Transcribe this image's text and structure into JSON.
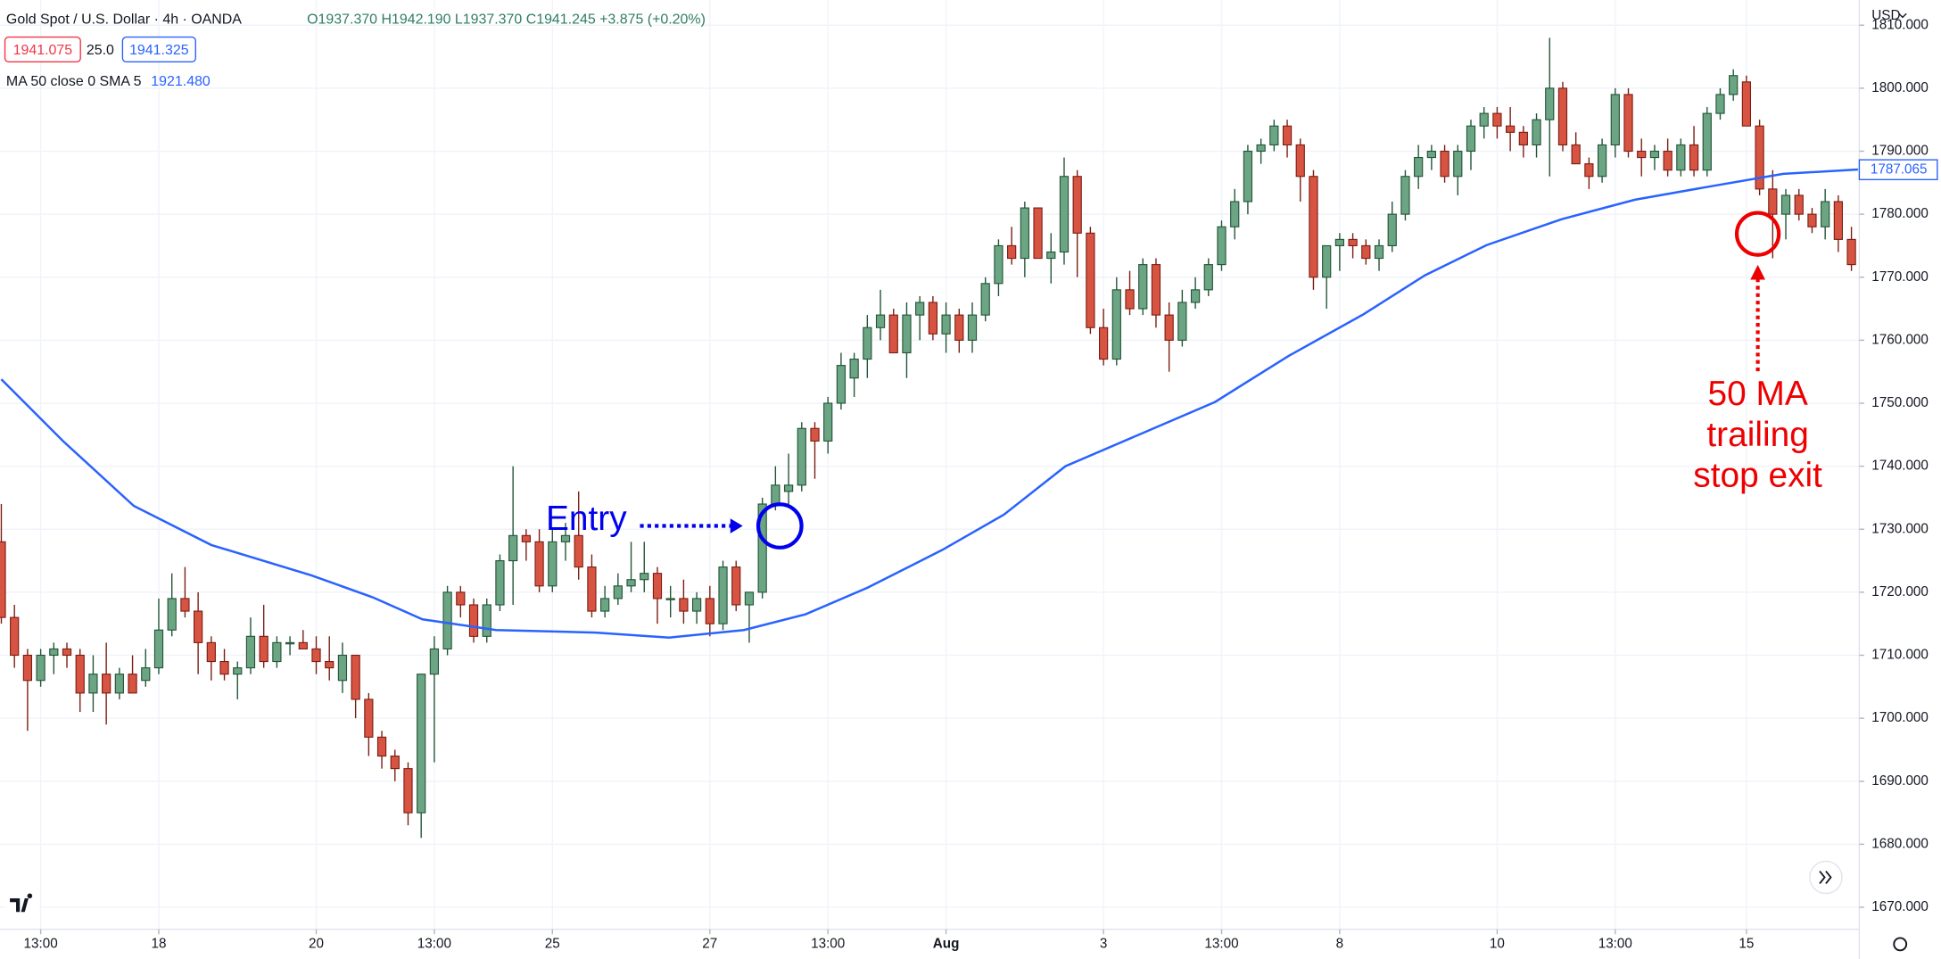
{
  "chart_data": {
    "type": "candlestick",
    "title": "Gold Spot / U.S. Dollar · 4h · OANDA",
    "ohlc_text": "O1937.370 H1942.190 L1937.370 C1941.245 +3.875 (+0.20%)",
    "bid": "1941.075",
    "spread": "25.0",
    "ask": "1941.325",
    "indicator": "MA 50 close 0 SMA 5",
    "indicator_value": "1921.480",
    "currency": "USD",
    "last_price": {
      "value": 1787.065,
      "label": "1787.065"
    },
    "annotations": {
      "entry": "Entry",
      "exit": [
        "50 MA",
        "trailing",
        "stop exit"
      ]
    },
    "colors": {
      "up": "#6ba583",
      "down": "#d75442",
      "ma": "#2962ff"
    },
    "grid": true,
    "ylim": [
      1666.5,
      1814
    ],
    "yticks": [
      {
        "value": 1670,
        "label": "1670.000"
      },
      {
        "value": 1680,
        "label": "1680.000"
      },
      {
        "value": 1690,
        "label": "1690.000"
      },
      {
        "value": 1700,
        "label": "1700.000"
      },
      {
        "value": 1710,
        "label": "1710.000"
      },
      {
        "value": 1720,
        "label": "1720.000"
      },
      {
        "value": 1730,
        "label": "1730.000"
      },
      {
        "value": 1740,
        "label": "1740.000"
      },
      {
        "value": 1750,
        "label": "1750.000"
      },
      {
        "value": 1760,
        "label": "1760.000"
      },
      {
        "value": 1770,
        "label": "1770.000"
      },
      {
        "value": 1780,
        "label": "1780.000"
      },
      {
        "value": 1790,
        "label": "1790.000"
      },
      {
        "value": 1800,
        "label": "1800.000"
      },
      {
        "value": 1810,
        "label": "1810.000"
      }
    ],
    "xlim": [
      -0.1,
      141.6
    ],
    "xticks": [
      {
        "value": 3,
        "label": "13:00"
      },
      {
        "value": 12,
        "label": "18"
      },
      {
        "value": 24,
        "label": "20"
      },
      {
        "value": 33,
        "label": "13:00"
      },
      {
        "value": 42,
        "label": "25"
      },
      {
        "value": 54,
        "label": "27"
      },
      {
        "value": 63,
        "label": "13:00"
      },
      {
        "value": 72,
        "label": "Aug"
      },
      {
        "value": 84,
        "label": "3"
      },
      {
        "value": 93,
        "label": "13:00"
      },
      {
        "value": 102,
        "label": "8"
      },
      {
        "value": 114,
        "label": "10"
      },
      {
        "value": 123,
        "label": "13:00"
      },
      {
        "value": 133,
        "label": "15"
      }
    ],
    "ohlc": [
      [
        1728,
        1734,
        1715,
        1716
      ],
      [
        1716,
        1718,
        1708,
        1710
      ],
      [
        1710,
        1711,
        1698,
        1706
      ],
      [
        1706,
        1711,
        1705,
        1710
      ],
      [
        1710,
        1712,
        1707,
        1711
      ],
      [
        1711,
        1712,
        1708,
        1710
      ],
      [
        1710,
        1711,
        1701,
        1704
      ],
      [
        1704,
        1710,
        1701,
        1707
      ],
      [
        1707,
        1712,
        1699,
        1704
      ],
      [
        1704,
        1708,
        1703,
        1707
      ],
      [
        1707,
        1710,
        1704,
        1704
      ],
      [
        1706,
        1711,
        1705,
        1708
      ],
      [
        1708,
        1719,
        1707,
        1714
      ],
      [
        1714,
        1723,
        1713,
        1719
      ],
      [
        1719,
        1724,
        1716,
        1717
      ],
      [
        1717,
        1720,
        1707,
        1712
      ],
      [
        1712,
        1713,
        1706,
        1709
      ],
      [
        1709,
        1711,
        1706,
        1707
      ],
      [
        1707,
        1709,
        1703,
        1708
      ],
      [
        1708,
        1716,
        1707,
        1713
      ],
      [
        1713,
        1718,
        1708,
        1709
      ],
      [
        1709,
        1713,
        1708,
        1712
      ],
      [
        1712,
        1713,
        1710,
        1712
      ],
      [
        1712,
        1714,
        1711,
        1711
      ],
      [
        1711,
        1713,
        1707,
        1709
      ],
      [
        1709,
        1713,
        1706,
        1708
      ],
      [
        1706,
        1712,
        1704,
        1710
      ],
      [
        1710,
        1710,
        1700,
        1703
      ],
      [
        1703,
        1704,
        1694,
        1697
      ],
      [
        1697,
        1698,
        1692,
        1694
      ],
      [
        1694,
        1695,
        1690,
        1692
      ],
      [
        1692,
        1693,
        1683,
        1685
      ],
      [
        1685,
        1707,
        1681,
        1707
      ],
      [
        1707,
        1713,
        1693,
        1711
      ],
      [
        1711,
        1721,
        1710,
        1720
      ],
      [
        1720,
        1721,
        1716,
        1718
      ],
      [
        1718,
        1719,
        1712,
        1713
      ],
      [
        1713,
        1719,
        1712,
        1718
      ],
      [
        1718,
        1726,
        1717,
        1725
      ],
      [
        1725,
        1740,
        1718,
        1729
      ],
      [
        1729,
        1730,
        1725,
        1728
      ],
      [
        1728,
        1730,
        1720,
        1721
      ],
      [
        1721,
        1730,
        1720,
        1728
      ],
      [
        1728,
        1731,
        1725,
        1729
      ],
      [
        1729,
        1736,
        1722,
        1724
      ],
      [
        1724,
        1726,
        1716,
        1717
      ],
      [
        1717,
        1721,
        1716,
        1719
      ],
      [
        1719,
        1723,
        1718,
        1721
      ],
      [
        1721,
        1728,
        1720,
        1722
      ],
      [
        1722,
        1728,
        1720,
        1723
      ],
      [
        1723,
        1724,
        1715,
        1719
      ],
      [
        1719,
        1721,
        1716,
        1719
      ],
      [
        1719,
        1722,
        1715,
        1717
      ],
      [
        1717,
        1720,
        1715,
        1719
      ],
      [
        1719,
        1721,
        1713,
        1715
      ],
      [
        1715,
        1725,
        1714,
        1724
      ],
      [
        1724,
        1725,
        1717,
        1718
      ],
      [
        1718,
        1720,
        1712,
        1720
      ],
      [
        1720,
        1735,
        1719,
        1734
      ],
      [
        1734,
        1740,
        1733,
        1737
      ],
      [
        1736,
        1742,
        1734,
        1737
      ],
      [
        1737,
        1747,
        1736,
        1746
      ],
      [
        1746,
        1747,
        1738,
        1744
      ],
      [
        1744,
        1751,
        1742,
        1750
      ],
      [
        1750,
        1758,
        1749,
        1756
      ],
      [
        1754,
        1758,
        1751,
        1757
      ],
      [
        1757,
        1764,
        1754,
        1762
      ],
      [
        1762,
        1768,
        1760,
        1764
      ],
      [
        1764,
        1765,
        1758,
        1758
      ],
      [
        1758,
        1766,
        1754,
        1764
      ],
      [
        1764,
        1767,
        1760,
        1766
      ],
      [
        1766,
        1767,
        1760,
        1761
      ],
      [
        1761,
        1766,
        1758,
        1764
      ],
      [
        1764,
        1765,
        1758,
        1760
      ],
      [
        1760,
        1766,
        1758,
        1764
      ],
      [
        1764,
        1770,
        1763,
        1769
      ],
      [
        1769,
        1776,
        1767,
        1775
      ],
      [
        1775,
        1778,
        1772,
        1773
      ],
      [
        1773,
        1782,
        1770,
        1781
      ],
      [
        1781,
        1781,
        1773,
        1773
      ],
      [
        1773,
        1777,
        1769,
        1774
      ],
      [
        1774,
        1789,
        1772,
        1786
      ],
      [
        1786,
        1787,
        1770,
        1777
      ],
      [
        1777,
        1778,
        1761,
        1762
      ],
      [
        1762,
        1765,
        1756,
        1757
      ],
      [
        1757,
        1770,
        1756,
        1768
      ],
      [
        1768,
        1771,
        1764,
        1765
      ],
      [
        1765,
        1773,
        1764,
        1772
      ],
      [
        1772,
        1773,
        1762,
        1764
      ],
      [
        1764,
        1766,
        1755,
        1760
      ],
      [
        1760,
        1768,
        1759,
        1766
      ],
      [
        1766,
        1770,
        1765,
        1768
      ],
      [
        1768,
        1773,
        1767,
        1772
      ],
      [
        1772,
        1779,
        1771,
        1778
      ],
      [
        1778,
        1784,
        1776,
        1782
      ],
      [
        1782,
        1791,
        1780,
        1790
      ],
      [
        1790,
        1792,
        1788,
        1791
      ],
      [
        1791,
        1795,
        1790,
        1794
      ],
      [
        1794,
        1795,
        1789,
        1791
      ],
      [
        1791,
        1792,
        1782,
        1786
      ],
      [
        1786,
        1787,
        1768,
        1770
      ],
      [
        1770,
        1774,
        1765,
        1775
      ],
      [
        1775,
        1777,
        1771,
        1776
      ],
      [
        1776,
        1777,
        1773,
        1775
      ],
      [
        1775,
        1776,
        1772,
        1773
      ],
      [
        1773,
        1776,
        1771,
        1775
      ],
      [
        1775,
        1782,
        1774,
        1780
      ],
      [
        1780,
        1787,
        1779,
        1786
      ],
      [
        1786,
        1791,
        1784,
        1789
      ],
      [
        1789,
        1791,
        1787,
        1790
      ],
      [
        1790,
        1791,
        1785,
        1786
      ],
      [
        1786,
        1791,
        1783,
        1790
      ],
      [
        1790,
        1795,
        1787,
        1794
      ],
      [
        1794,
        1797,
        1792,
        1796
      ],
      [
        1796,
        1797,
        1792,
        1794
      ],
      [
        1794,
        1797,
        1790,
        1793
      ],
      [
        1793,
        1794,
        1789,
        1791
      ],
      [
        1791,
        1796,
        1789,
        1795
      ],
      [
        1795,
        1808,
        1786,
        1800
      ],
      [
        1800,
        1801,
        1790,
        1791
      ],
      [
        1791,
        1793,
        1788,
        1788
      ],
      [
        1788,
        1789,
        1784,
        1786
      ],
      [
        1786,
        1792,
        1785,
        1791
      ],
      [
        1791,
        1800,
        1789,
        1799
      ],
      [
        1799,
        1800,
        1789,
        1790
      ],
      [
        1790,
        1792,
        1786,
        1789
      ],
      [
        1789,
        1791,
        1787,
        1790
      ],
      [
        1790,
        1792,
        1786,
        1787
      ],
      [
        1787,
        1792,
        1786,
        1791
      ],
      [
        1791,
        1794,
        1786,
        1787
      ],
      [
        1787,
        1797,
        1786,
        1796
      ],
      [
        1796,
        1800,
        1795,
        1799
      ],
      [
        1799,
        1803,
        1798,
        1802
      ],
      [
        1801,
        1802,
        1794,
        1794
      ],
      [
        1794,
        1795,
        1783,
        1784
      ],
      [
        1784,
        1787,
        1773,
        1780
      ],
      [
        1780,
        1784,
        1776,
        1783
      ],
      [
        1783,
        1784,
        1779,
        1780
      ],
      [
        1780,
        1781,
        1777,
        1778
      ],
      [
        1778,
        1784,
        1776,
        1782
      ],
      [
        1782,
        1783,
        1774,
        1776
      ],
      [
        1776,
        1778,
        1771,
        1772
      ]
    ],
    "ma": {
      "x": [
        0,
        4.7,
        10.1,
        16,
        23.6,
        28.3,
        32.1,
        37.7,
        45.3,
        50.9,
        56.6,
        61.3,
        66,
        71.7,
        76.4,
        81.1,
        86.8,
        92.5,
        98.1,
        103.8,
        108.5,
        113.2,
        118.9,
        124.5,
        130.2,
        135.8,
        141.5
      ],
      "values": [
        1753.8,
        1744,
        1733.7,
        1727.5,
        1722.7,
        1719.2,
        1715.7,
        1714,
        1713.6,
        1712.8,
        1714,
        1716.5,
        1720.7,
        1726.7,
        1732.3,
        1740,
        1745.1,
        1750.2,
        1757.5,
        1764.1,
        1770.3,
        1775.1,
        1779.2,
        1782.3,
        1784.4,
        1786.4,
        1787.1
      ]
    }
  }
}
